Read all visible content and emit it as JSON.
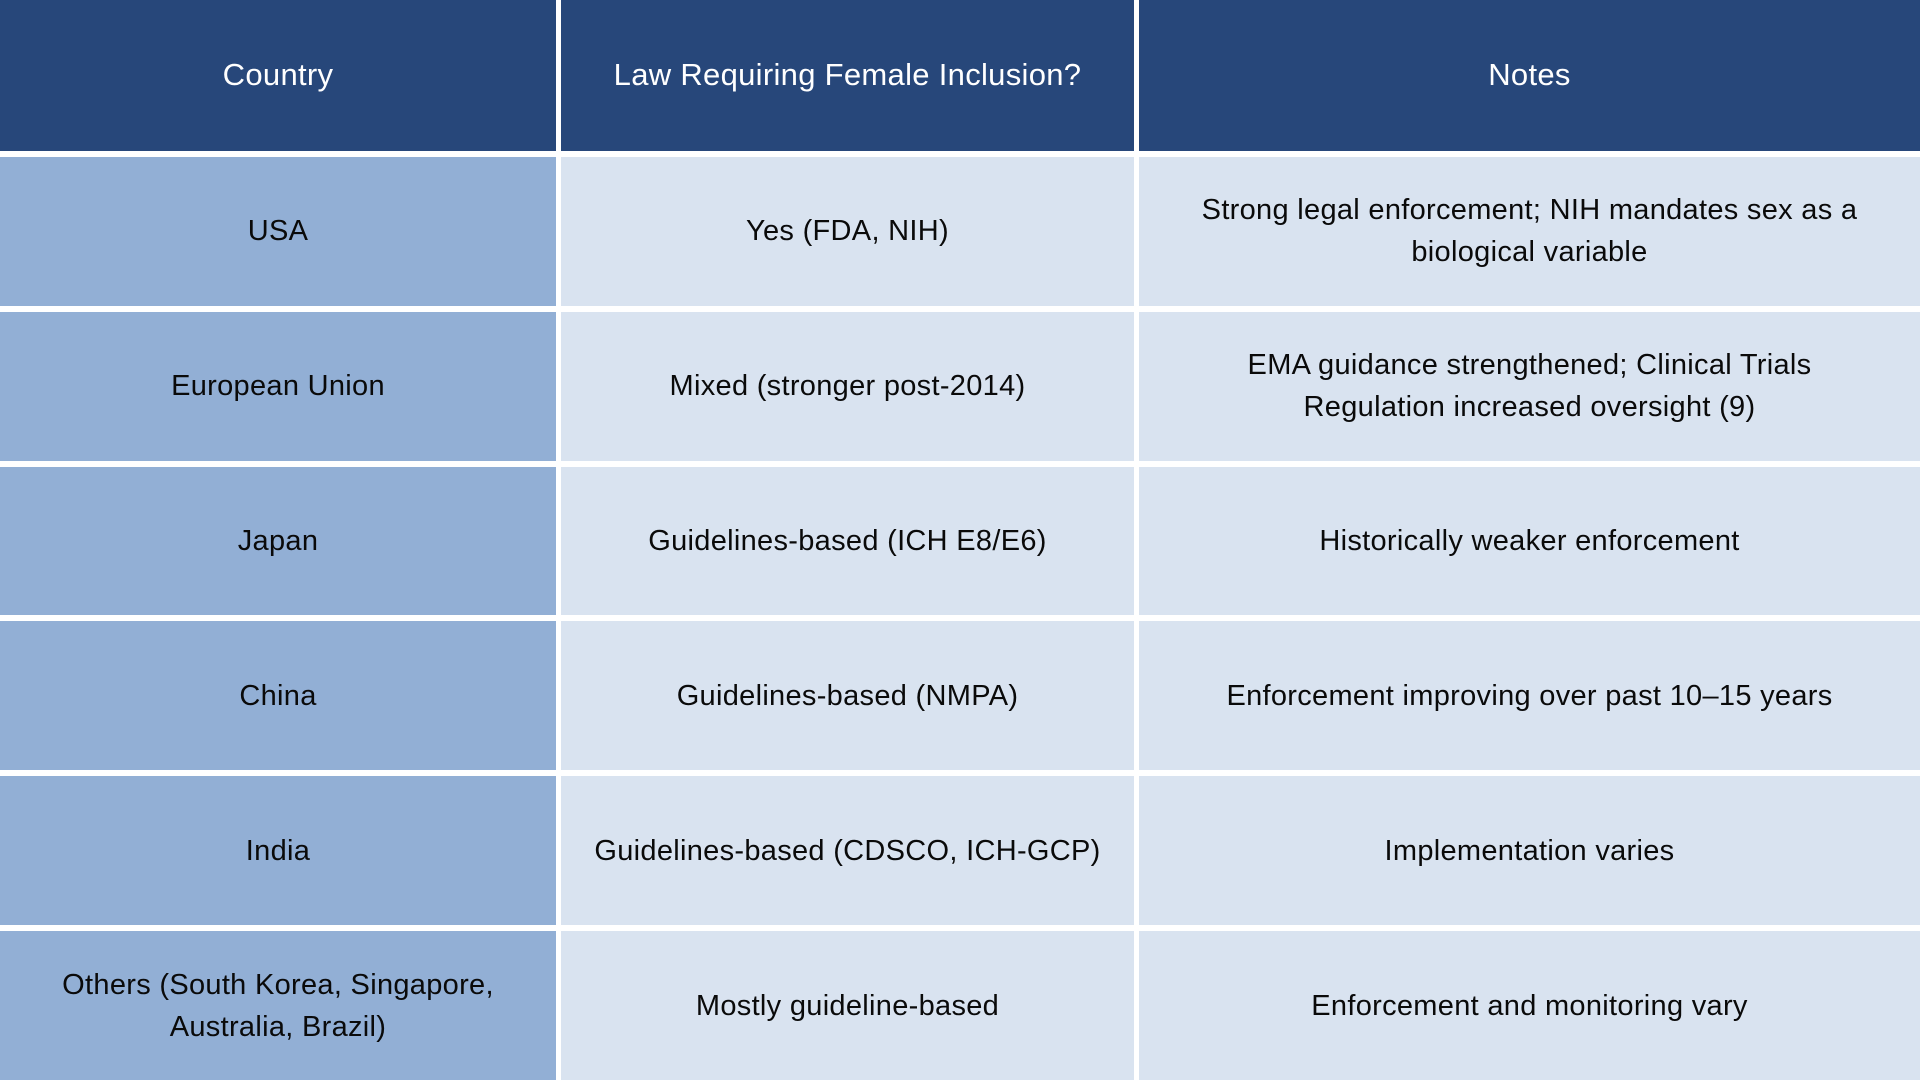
{
  "table": {
    "columns": {
      "country": "Country",
      "law": "Law Requiring Female Inclusion?",
      "notes": "Notes"
    },
    "rows": [
      {
        "country": "USA",
        "law": "Yes (FDA, NIH)",
        "notes": "Strong legal enforcement; NIH mandates sex as a\nbiological variable"
      },
      {
        "country": "European Union",
        "law": "Mixed (stronger post-2014)",
        "notes": "EMA guidance strengthened; Clinical Trials\nRegulation increased oversight (9)"
      },
      {
        "country": "Japan",
        "law": "Guidelines-based (ICH E8/E6)",
        "notes": "Historically weaker enforcement"
      },
      {
        "country": "China",
        "law": "Guidelines-based (NMPA)",
        "notes": "Enforcement improving over past 10–15 years"
      },
      {
        "country": "India",
        "law": "Guidelines-based (CDSCO, ICH-GCP)",
        "notes": "Implementation varies"
      },
      {
        "country": "Others (South Korea, Singapore,\nAustralia, Brazil)",
        "law": "Mostly guideline-based",
        "notes": "Enforcement and monitoring vary"
      }
    ],
    "colors": {
      "header_bg": "#27477A",
      "country_bg": "#92AFD5",
      "cell_bg": "#D9E3F0",
      "border": "#FFFFFF",
      "header_text": "#FFFFFF",
      "body_text": "#0A0A0A"
    }
  }
}
